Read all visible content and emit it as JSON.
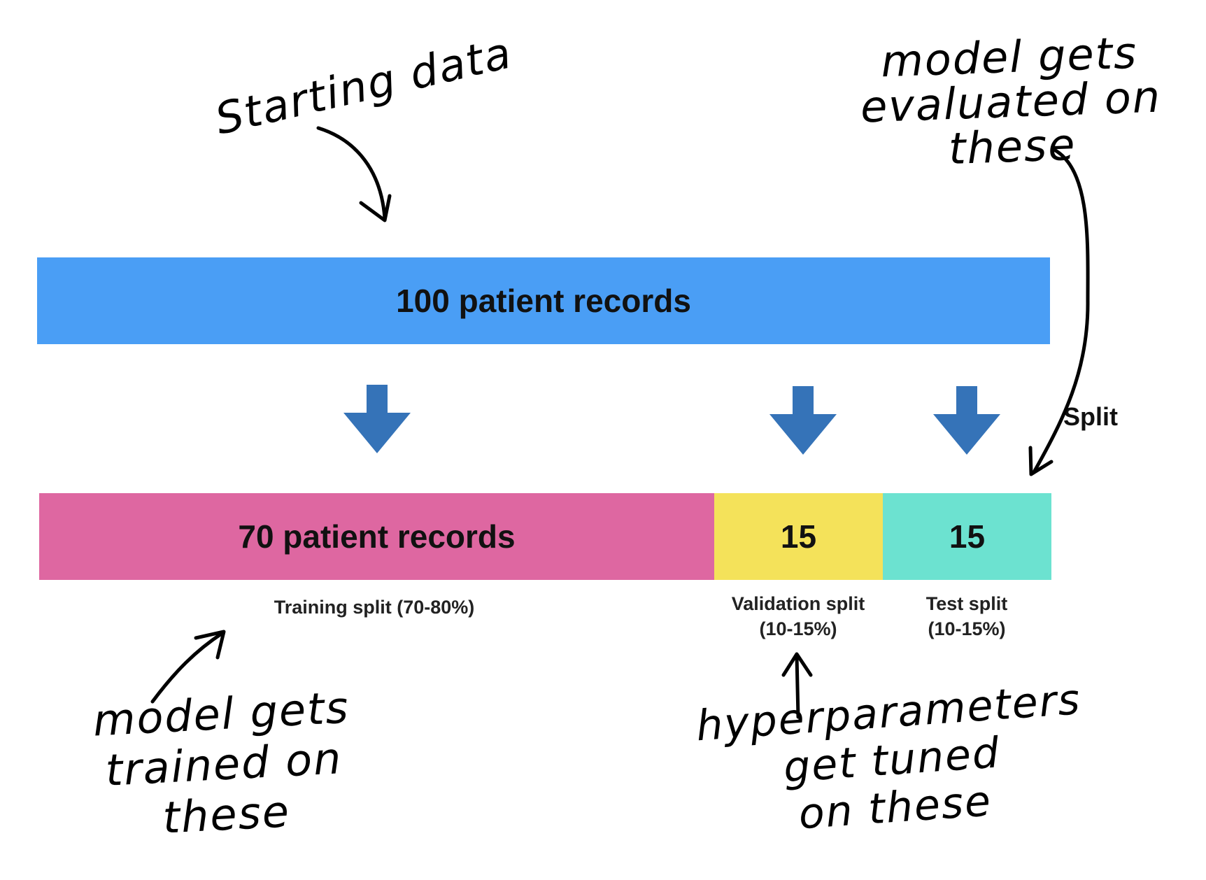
{
  "total_bar": {
    "label": "100 patient records",
    "color": "#4A9EF5"
  },
  "split_label": "Split",
  "arrow_color": "#3573B8",
  "segments": [
    {
      "label": "70 patient records",
      "value": 70,
      "color": "#DE67A1",
      "caption_line1": "Training split (70-80%)",
      "caption_line2": ""
    },
    {
      "label": "15",
      "value": 15,
      "color": "#F4E25A",
      "caption_line1": "Validation split",
      "caption_line2": "(10-15%)"
    },
    {
      "label": "15",
      "value": 15,
      "color": "#6CE2D0",
      "caption_line1": "Test split",
      "caption_line2": "(10-15%)"
    }
  ],
  "annotations": {
    "starting_data": "Starting data",
    "evaluated": "model gets\nevaluated on\nthese",
    "trained": "model gets\ntrained on\nthese",
    "hyperparameters": "hyperparameters\nget tuned\non these"
  }
}
